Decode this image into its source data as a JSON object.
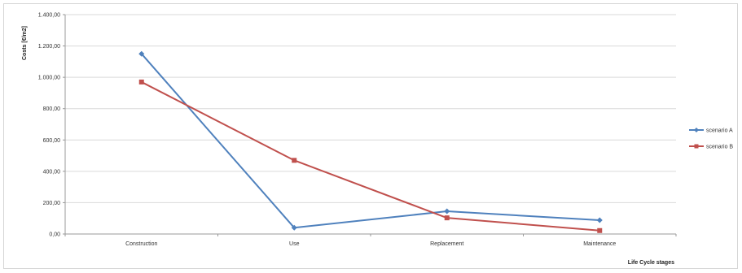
{
  "chart_data": {
    "type": "line",
    "title": "",
    "xlabel": "Life Cycle stages",
    "ylabel": "Costs [€/m2]",
    "categories": [
      "Construction",
      "Use",
      "Replacement",
      "Maintenance"
    ],
    "ylim": [
      0,
      1400
    ],
    "yticks": [
      "0,00",
      "200,00",
      "400,00",
      "600,00",
      "800,00",
      "1.000,00",
      "1.200,00",
      "1.400,00"
    ],
    "grid": true,
    "legend_position": "right",
    "series": [
      {
        "name": "scenario A",
        "color": "#4f81bd",
        "marker": "diamond",
        "values": [
          1150,
          40,
          145,
          88
        ]
      },
      {
        "name": "scenario B",
        "color": "#c0504d",
        "marker": "square",
        "values": [
          970,
          470,
          103,
          22
        ]
      }
    ]
  }
}
